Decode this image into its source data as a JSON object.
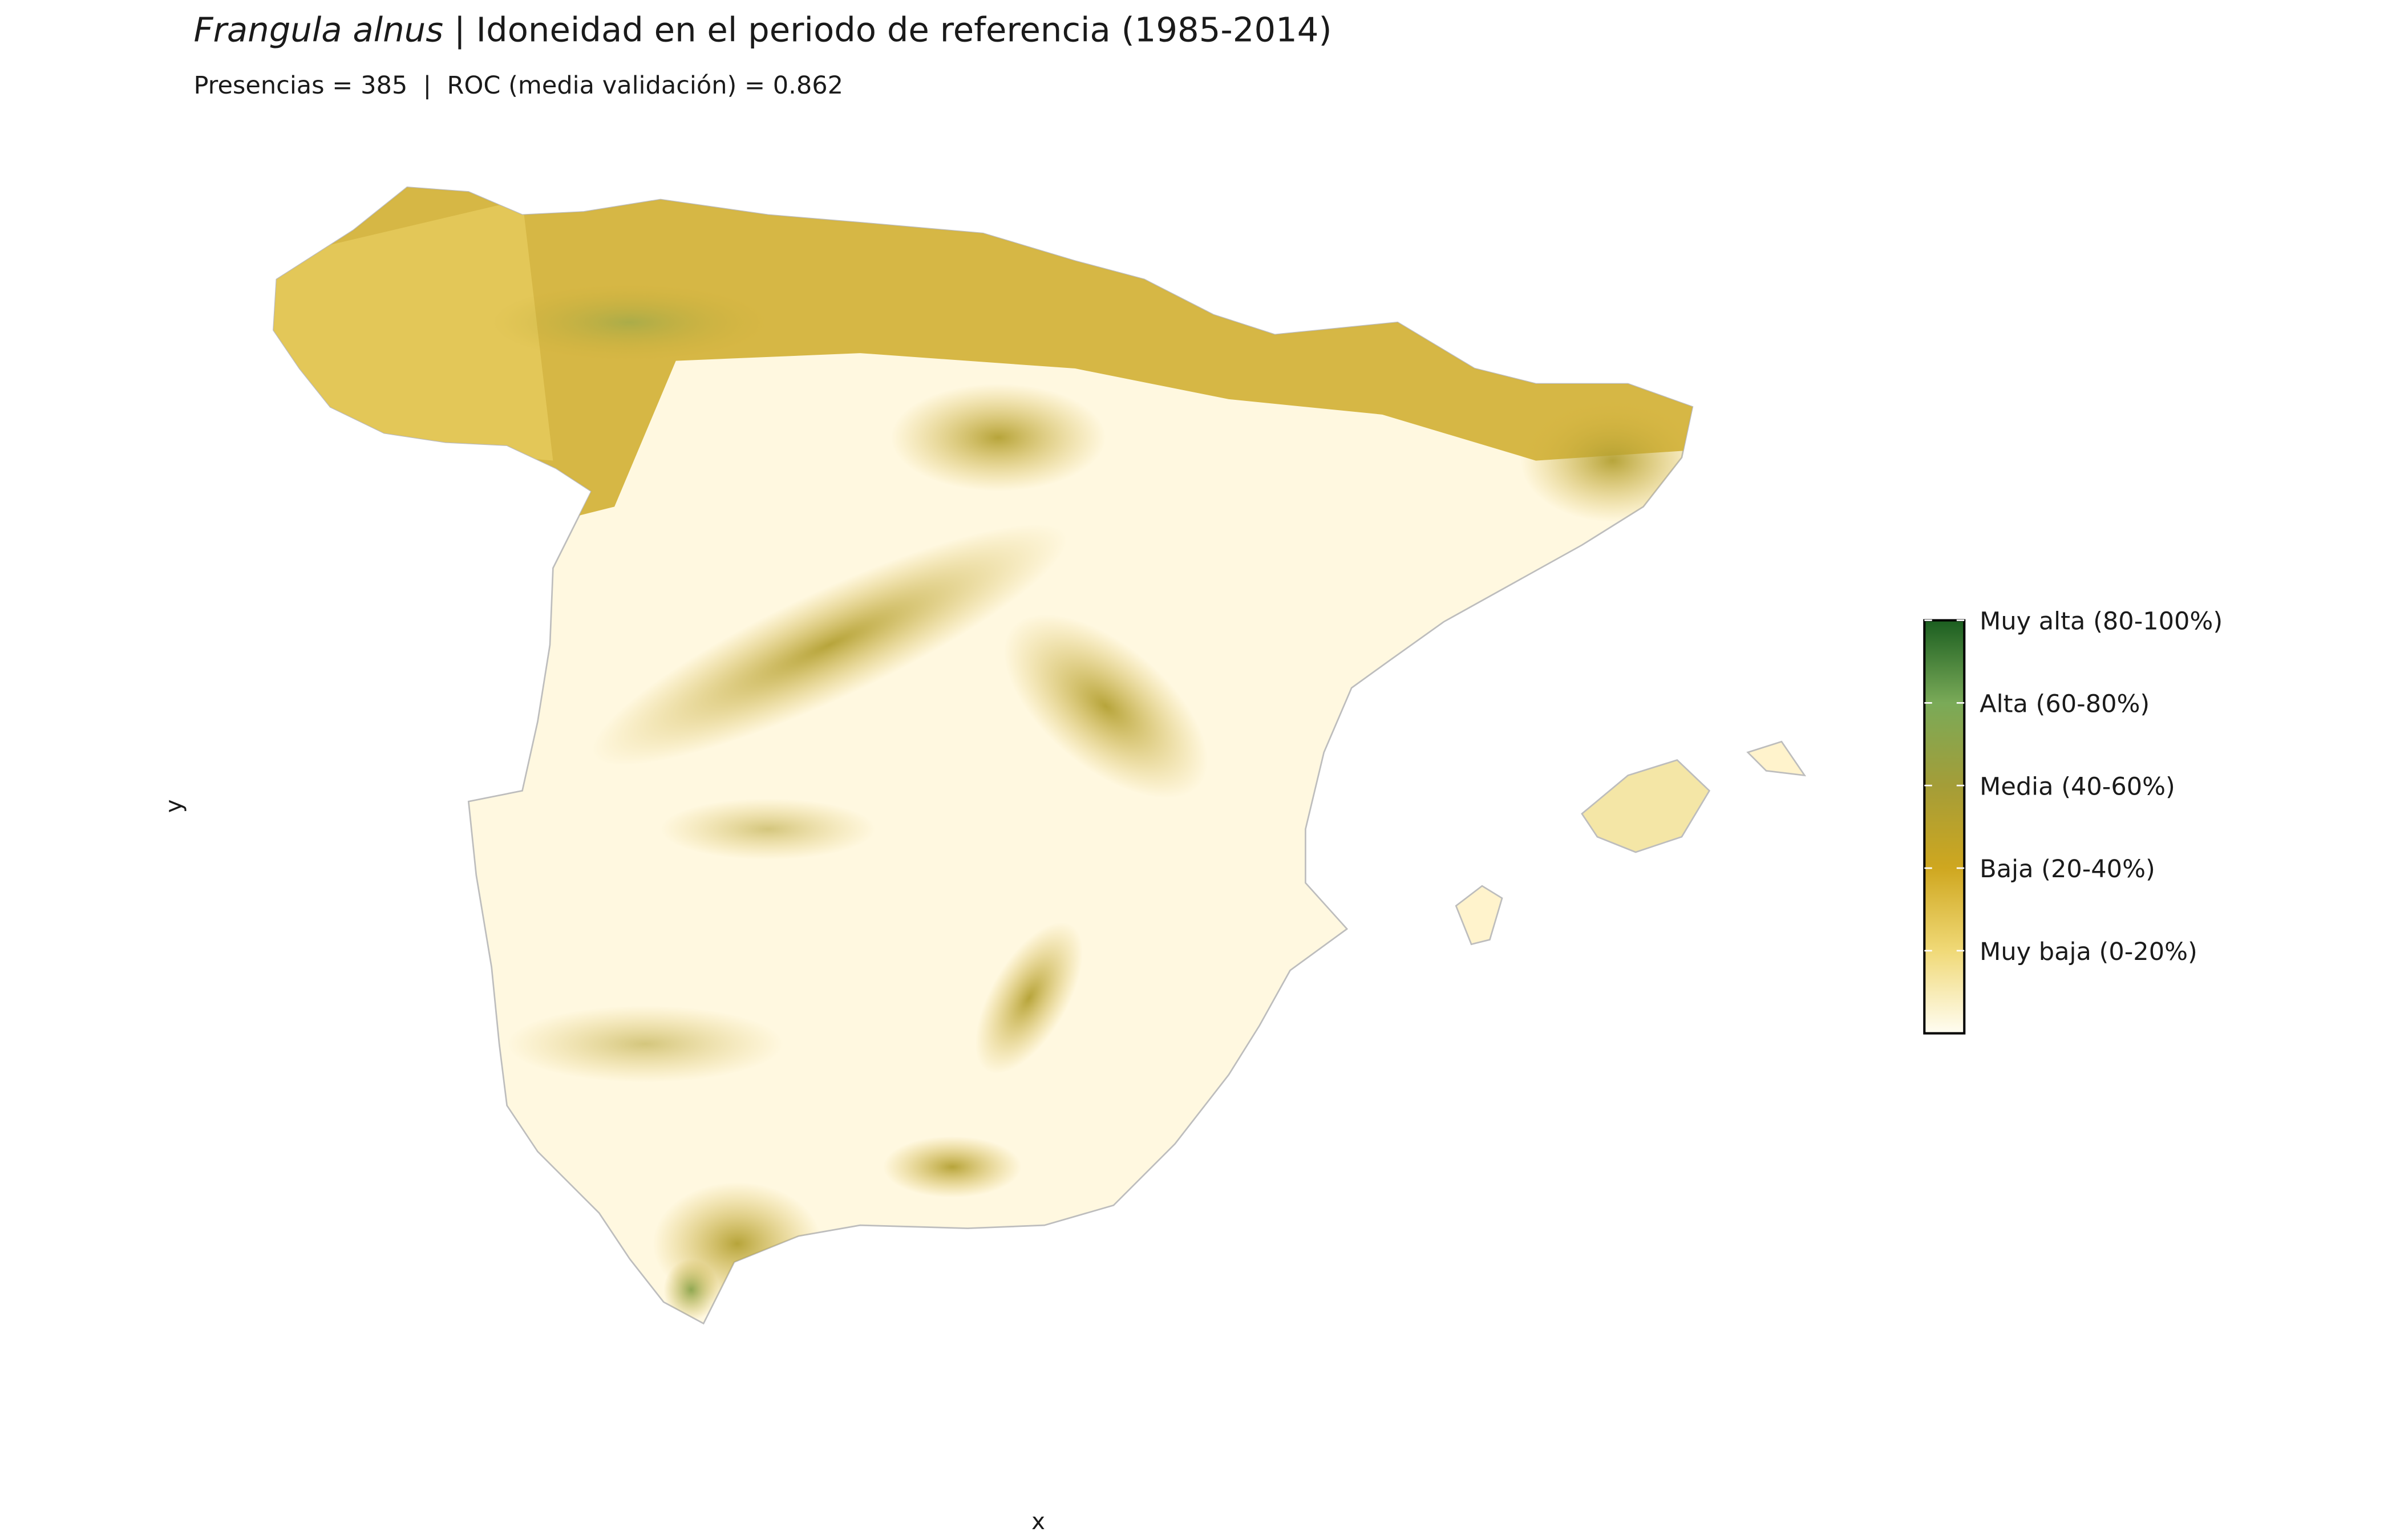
{
  "map": {
    "title_species": "Frangula alnus",
    "title_rest": " | Idoneidad en el periodo de referencia (1985-2014)",
    "subtitle": "Presencias = 385  |  ROC (media validación) = 0.862",
    "x_label": "x",
    "y_label": "y",
    "legend": {
      "labels": [
        "Muy alta (80-100%)",
        "Alta (60-80%)",
        "Media (40-60%)",
        "Baja (20-40%)",
        "Muy baja (0-20%)"
      ],
      "colors": [
        "#fffdf2",
        "#f0d977",
        "#cfa71f",
        "#a49d38",
        "#7aaa58",
        "#1b5e20"
      ]
    }
  }
}
